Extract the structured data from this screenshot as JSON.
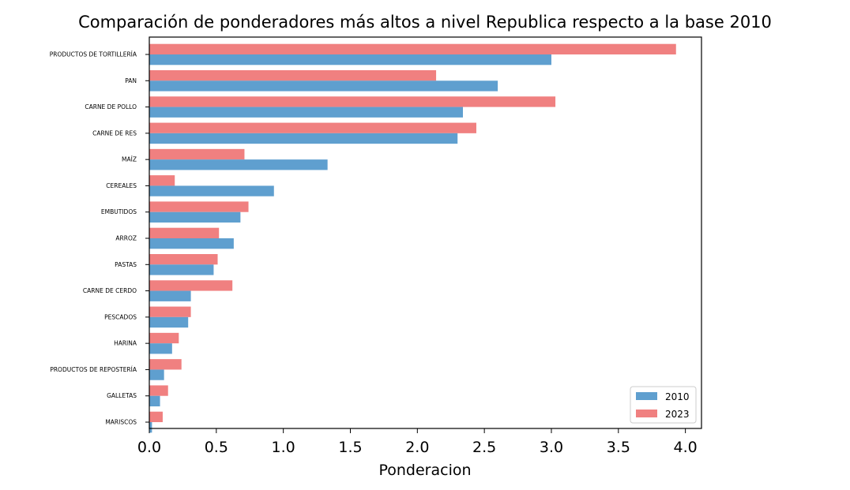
{
  "chart_data": {
    "type": "bar",
    "orientation": "horizontal",
    "title": "Comparación de ponderadores más altos a nivel Republica respecto a la base 2010",
    "xlabel": "Ponderacion",
    "ylabel": "",
    "xlim": [
      0.0,
      4.12
    ],
    "xticks": [
      "0.0",
      "0.5",
      "1.0",
      "1.5",
      "2.0",
      "2.5",
      "3.0",
      "3.5",
      "4.0"
    ],
    "categories": [
      "PRODUCTOS DE TORTILLERÍA",
      "PAN",
      "CARNE DE POLLO",
      "CARNE DE RES",
      "MAÍZ",
      "CEREALES",
      "EMBUTIDOS",
      "ARROZ",
      "PASTAS",
      "CARNE DE CERDO",
      "PESCADOS",
      "HARINA",
      "PRODUCTOS DE REPOSTERÍA",
      "GALLETAS",
      "MARISCOS"
    ],
    "series": [
      {
        "name": "2010",
        "color": "#5f9fcf",
        "values": [
          3.0,
          2.6,
          2.34,
          2.3,
          1.33,
          0.93,
          0.68,
          0.63,
          0.48,
          0.31,
          0.29,
          0.17,
          0.11,
          0.08,
          0.02
        ]
      },
      {
        "name": "2023",
        "color": "#f08080",
        "values": [
          3.93,
          2.14,
          3.03,
          2.44,
          0.71,
          0.19,
          0.74,
          0.52,
          0.51,
          0.62,
          0.31,
          0.22,
          0.24,
          0.14,
          0.1
        ]
      }
    ],
    "legend": {
      "placement": "lower-right",
      "entries": [
        "2010",
        "2023"
      ]
    },
    "grid": false
  }
}
